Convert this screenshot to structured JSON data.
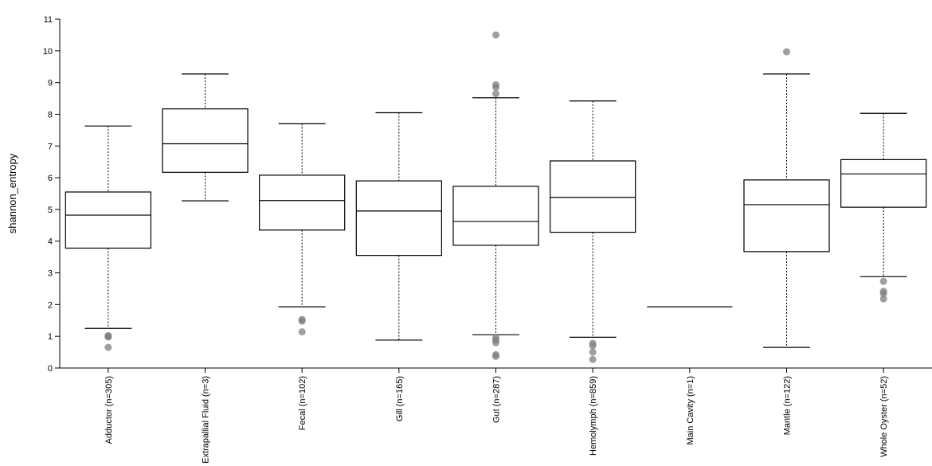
{
  "chart_data": {
    "type": "box",
    "ylabel": "shannon_entropy",
    "xlabel": "",
    "ylim": [
      0,
      11
    ],
    "yticks": [
      0,
      1,
      2,
      3,
      4,
      5,
      6,
      7,
      8,
      9,
      10,
      11
    ],
    "grid": false,
    "colors": {
      "box_stroke": "#000000",
      "outlier_fill": "#7f7f7f"
    },
    "categories": [
      "Adductor (n=305)",
      "Extrapallial Fluid (n=3)",
      "Fecal (n=102)",
      "Gill (n=165)",
      "Gut (n=287)",
      "Hemolymph (n=859)",
      "Main Cavity (n=1)",
      "Mantle (n=122)",
      "Whole Oyster (n=52)"
    ],
    "boxes": [
      {
        "whisker_low": 1.25,
        "q1": 3.78,
        "median": 4.82,
        "q3": 5.55,
        "whisker_high": 7.63,
        "outliers": [
          1.02,
          1.0,
          0.98,
          0.65
        ]
      },
      {
        "whisker_low": 5.27,
        "q1": 6.17,
        "median": 7.07,
        "q3": 8.17,
        "whisker_high": 9.27,
        "outliers": []
      },
      {
        "whisker_low": 1.93,
        "q1": 4.35,
        "median": 5.28,
        "q3": 6.08,
        "whisker_high": 7.7,
        "outliers": [
          1.53,
          1.48,
          1.14
        ]
      },
      {
        "whisker_low": 0.88,
        "q1": 3.55,
        "median": 4.95,
        "q3": 5.9,
        "whisker_high": 8.05,
        "outliers": []
      },
      {
        "whisker_low": 1.05,
        "q1": 3.87,
        "median": 4.62,
        "q3": 5.73,
        "whisker_high": 8.52,
        "outliers": [
          10.5,
          8.93,
          8.85,
          8.65,
          0.95,
          0.88,
          0.8,
          0.42,
          0.37
        ]
      },
      {
        "whisker_low": 0.97,
        "q1": 4.28,
        "median": 5.38,
        "q3": 6.53,
        "whisker_high": 8.42,
        "outliers": [
          0.78,
          0.7,
          0.5,
          0.27
        ]
      },
      {
        "whisker_low": 1.93,
        "q1": 1.93,
        "median": 1.93,
        "q3": 1.93,
        "whisker_high": 1.93,
        "outliers": []
      },
      {
        "whisker_low": 0.65,
        "q1": 3.67,
        "median": 5.15,
        "q3": 5.93,
        "whisker_high": 9.27,
        "outliers": [
          9.97
        ]
      },
      {
        "whisker_low": 2.88,
        "q1": 5.07,
        "median": 6.12,
        "q3": 6.57,
        "whisker_high": 8.03,
        "outliers": [
          2.73,
          2.42,
          2.35,
          2.18
        ]
      }
    ]
  }
}
